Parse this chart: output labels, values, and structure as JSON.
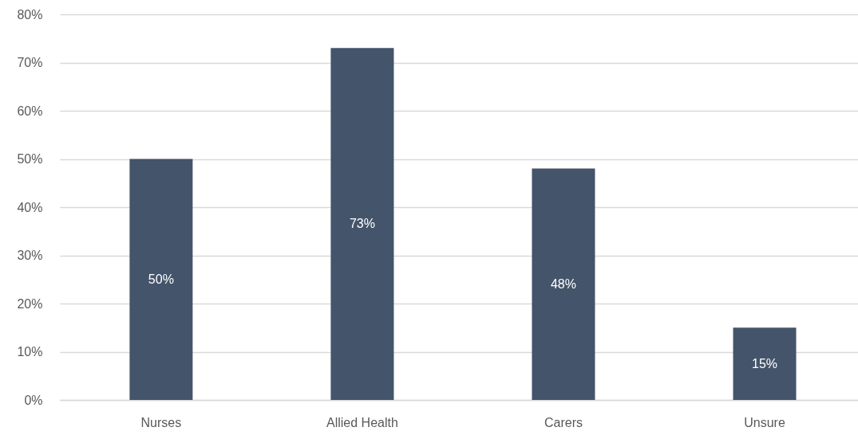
{
  "chart_data": {
    "type": "bar",
    "categories": [
      "Nurses",
      "Allied Health",
      "Carers",
      "Unsure"
    ],
    "values": [
      50,
      73,
      48,
      15
    ],
    "color": "#44546a",
    "value_labels": [
      "50%",
      "73%",
      "48%",
      "15%"
    ],
    "ylim": [
      0,
      80
    ],
    "yticks": [
      {
        "value": 0,
        "label": "0%"
      },
      {
        "value": 10,
        "label": "10%"
      },
      {
        "value": 20,
        "label": "20%"
      },
      {
        "value": 30,
        "label": "30%"
      },
      {
        "value": 40,
        "label": "40%"
      },
      {
        "value": 50,
        "label": "50%"
      },
      {
        "value": 60,
        "label": "60%"
      },
      {
        "value": 70,
        "label": "70%"
      },
      {
        "value": 80,
        "label": "80%"
      }
    ],
    "grid": "y"
  }
}
